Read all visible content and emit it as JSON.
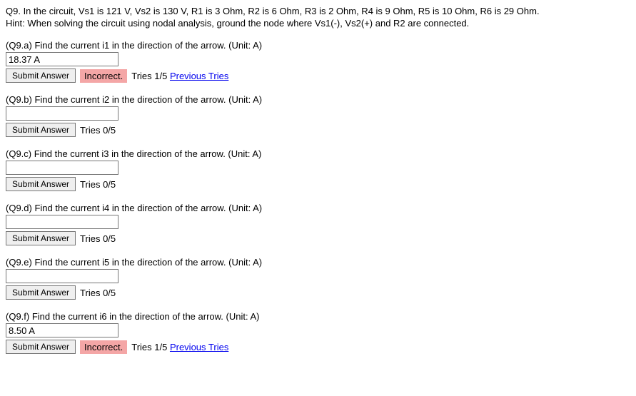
{
  "problem": {
    "statement": "Q9. In the circuit, Vs1 is 121 V, Vs2 is 130 V, R1 is 3 Ohm, R2 is 6 Ohm, R3 is 2 Ohm, R4 is 9 Ohm, R5 is 10 Ohm, R6 is 29 Ohm.",
    "hint": "Hint: When solving the circuit using nodal analysis, ground the node where Vs1(-), Vs2(+) and R2 are connected."
  },
  "questions": [
    {
      "id": "a",
      "prompt": "(Q9.a) Find the current i1 in the direction of the arrow. (Unit: A)",
      "value": "18.37 A",
      "submit_label": "Submit Answer",
      "feedback": "Incorrect.",
      "tries_text": "Tries 1/5",
      "prev_tries_label": "Previous Tries",
      "has_feedback": true
    },
    {
      "id": "b",
      "prompt": "(Q9.b) Find the current i2 in the direction of the arrow. (Unit: A)",
      "value": "",
      "submit_label": "Submit Answer",
      "feedback": "",
      "tries_text": "Tries 0/5",
      "prev_tries_label": "",
      "has_feedback": false
    },
    {
      "id": "c",
      "prompt": "(Q9.c) Find the current i3 in the direction of the arrow. (Unit: A)",
      "value": "",
      "submit_label": "Submit Answer",
      "feedback": "",
      "tries_text": "Tries 0/5",
      "prev_tries_label": "",
      "has_feedback": false
    },
    {
      "id": "d",
      "prompt": "(Q9.d) Find the current i4 in the direction of the arrow. (Unit: A)",
      "value": "",
      "submit_label": "Submit Answer",
      "feedback": "",
      "tries_text": "Tries 0/5",
      "prev_tries_label": "",
      "has_feedback": false
    },
    {
      "id": "e",
      "prompt": "(Q9.e) Find the current i5 in the direction of the arrow. (Unit: A)",
      "value": "",
      "submit_label": "Submit Answer",
      "feedback": "",
      "tries_text": "Tries 0/5",
      "prev_tries_label": "",
      "has_feedback": false
    },
    {
      "id": "f",
      "prompt": "(Q9.f) Find the current i6 in the direction of the arrow. (Unit: A)",
      "value": "8.50 A",
      "submit_label": "Submit Answer",
      "feedback": "Incorrect.",
      "tries_text": "Tries 1/5",
      "prev_tries_label": "Previous Tries",
      "has_feedback": true
    }
  ],
  "colors": {
    "incorrect_bg": "#f4a6a6",
    "link_color": "#0000ee",
    "text_color": "#000000",
    "bg_color": "#ffffff"
  }
}
